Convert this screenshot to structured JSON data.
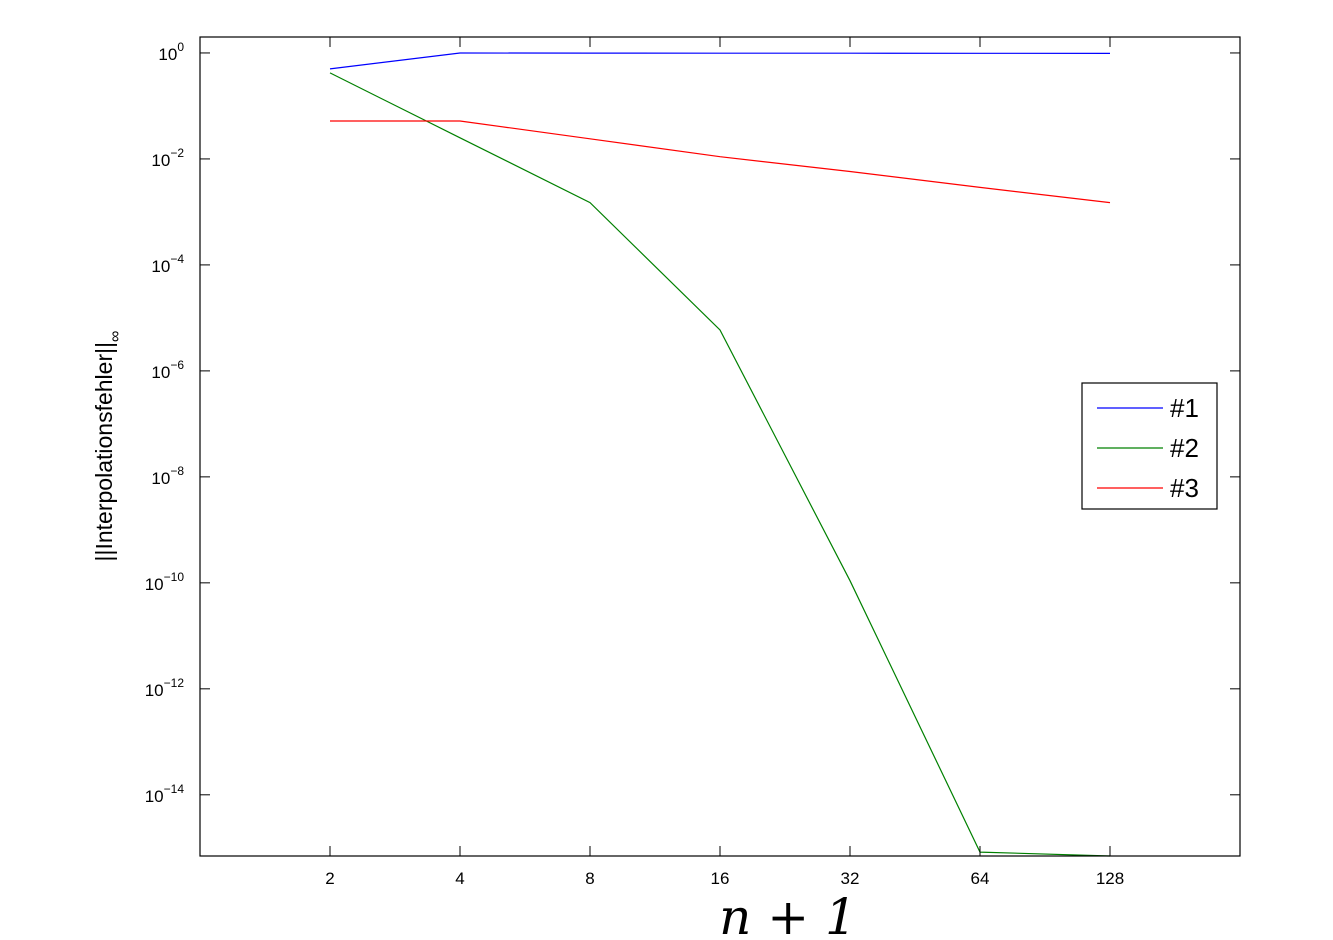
{
  "chart_data": {
    "type": "line",
    "title": "",
    "xlabel": "n + 1",
    "ylabel": "||Interpolationsfehler||",
    "ylabel_subscript": "∞",
    "xscale": "log2",
    "yscale": "log10",
    "xlim": [
      1,
      256
    ],
    "ylim": [
      7e-16,
      2
    ],
    "xticks": [
      2,
      4,
      8,
      16,
      32,
      64,
      128
    ],
    "xtick_labels": [
      "2",
      "4",
      "8",
      "16",
      "32",
      "64",
      "128"
    ],
    "yticks": [
      0,
      -2,
      -4,
      -6,
      -8,
      -10,
      -12,
      -14
    ],
    "ytick_base": "10",
    "ytick_exponents": [
      "0",
      "−2",
      "−4",
      "−6",
      "−8",
      "−10",
      "−12",
      "−14"
    ],
    "grid": false,
    "legend_placement": "right",
    "x": [
      2,
      4,
      8,
      16,
      32,
      64,
      128
    ],
    "series": [
      {
        "name": "#1",
        "color": "#0000ff",
        "values": [
          0.5,
          1.0,
          0.995,
          0.99,
          0.99,
          0.985,
          0.98
        ]
      },
      {
        "name": "#2",
        "color": "#008000",
        "values": [
          0.42,
          0.025,
          0.0015,
          5.9e-06,
          1.1e-10,
          8.3e-16,
          7e-16
        ]
      },
      {
        "name": "#3",
        "color": "#ff0000",
        "values": [
          0.052,
          0.052,
          0.024,
          0.011,
          0.0058,
          0.0029,
          0.0015
        ]
      }
    ]
  }
}
